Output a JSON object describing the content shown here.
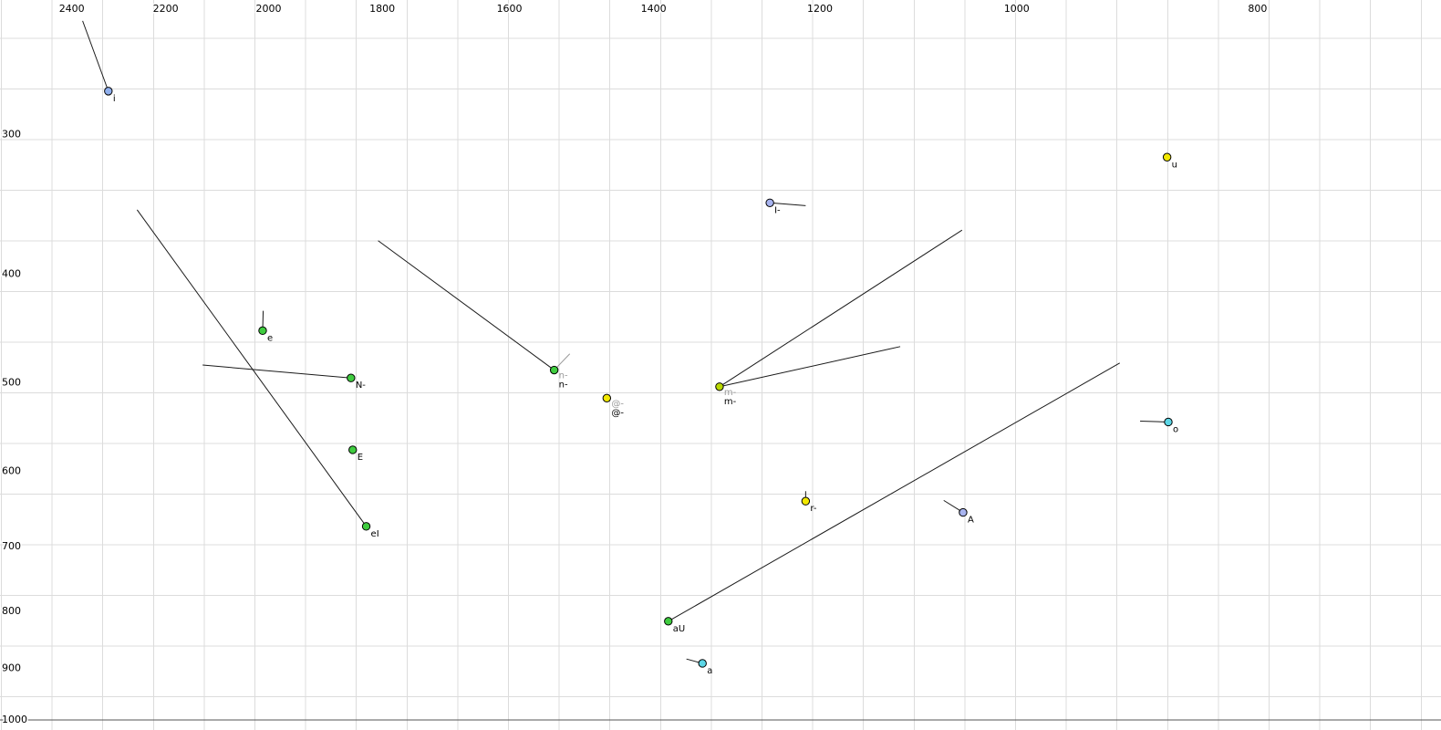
{
  "chart_data": {
    "type": "scatter",
    "x_axis": {
      "ticks": [
        2400,
        2200,
        2000,
        1800,
        1600,
        1400,
        1200,
        1000,
        800
      ],
      "scale": "log",
      "reversed": true,
      "position": "top",
      "range_left_edge": 2565,
      "range_right_edge": 675
    },
    "y_axis": {
      "ticks": [
        300,
        400,
        500,
        600,
        700,
        800,
        900,
        1000
      ],
      "scale": "log",
      "inverted": true,
      "position": "left",
      "range_top_edge": 228,
      "range_bottom_edge": 1023
    },
    "grid": {
      "show": true,
      "color": "#dcdcdc"
    },
    "trajectory_color": "#1a1a1a",
    "secondary_label_color": "#9a9a9a",
    "tick_label_color": "#000000",
    "point_label_color": "#000000",
    "bottom_rule": {
      "show": true,
      "f1_value": 1000,
      "color": "#555555"
    },
    "points": [
      {
        "label": "i",
        "f2": 2320,
        "f1": 275,
        "color": "#90b0ee",
        "tails": [
          [
            2376,
            238
          ]
        ]
      },
      {
        "label": "u",
        "f2": 870,
        "f1": 315,
        "color": "#f2e800",
        "tails": []
      },
      {
        "label": "I-",
        "f2": 1257,
        "f1": 346,
        "color": "#a8b4f0",
        "tails": [
          [
            1216,
            348
          ]
        ]
      },
      {
        "label": "e",
        "f2": 2011,
        "f1": 450,
        "color": "#3fcc3f",
        "tails": [
          [
            2010,
            432
          ]
        ]
      },
      {
        "label": "N-",
        "f2": 1853,
        "f1": 496,
        "color": "#3fcc3f",
        "tails": [
          [
            2126,
            483
          ]
        ]
      },
      {
        "label": "n-",
        "f2": 1535,
        "f1": 488,
        "color": "#3fcc3f",
        "gray_label": "n-",
        "tails": [
          [
            1807,
            374
          ]
        ],
        "gray_tails": [
          [
            1513,
            472
          ]
        ]
      },
      {
        "label": "@-",
        "f2": 1462,
        "f1": 517,
        "color": "#f2e800",
        "gray_label": "@-",
        "tails": []
      },
      {
        "label": "m-",
        "f2": 1317,
        "f1": 505,
        "color": "#b9d800",
        "gray_label": "m-",
        "tails": [
          [
            1052,
            366
          ],
          [
            1114,
            465
          ]
        ]
      },
      {
        "label": "o",
        "f2": 869,
        "f1": 543,
        "color": "#5cd6e6",
        "tails": [
          [
            892,
            542
          ]
        ]
      },
      {
        "label": "E",
        "f2": 1850,
        "f1": 575,
        "color": "#3fcc3f",
        "tails": []
      },
      {
        "label": "r-",
        "f2": 1216,
        "f1": 639,
        "color": "#f2e800",
        "tails": [
          [
            1216,
            626
          ]
        ]
      },
      {
        "label": "A",
        "f2": 1051,
        "f1": 654,
        "color": "#a8b4f0",
        "tails": [
          [
            1070,
            638
          ]
        ]
      },
      {
        "label": "eI",
        "f2": 1827,
        "f1": 673,
        "color": "#3fcc3f",
        "tails": [
          [
            2259,
            351
          ]
        ]
      },
      {
        "label": "aU",
        "f2": 1381,
        "f1": 818,
        "color": "#3fcc3f",
        "tails": [
          [
            909,
            481
          ]
        ]
      },
      {
        "label": "a",
        "f2": 1338,
        "f1": 892,
        "color": "#5cd6e6",
        "tails": [
          [
            1358,
            884
          ]
        ]
      }
    ]
  }
}
